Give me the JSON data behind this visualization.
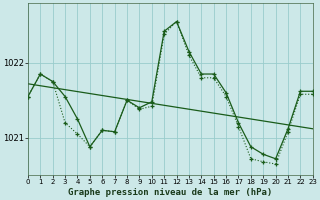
{
  "title": "Graphe pression niveau de la mer (hPa)",
  "bg_color": "#cce8e8",
  "grid_color": "#99cccc",
  "line_color": "#1a5c1a",
  "series1_y": [
    1021.55,
    1021.85,
    1021.75,
    1021.55,
    1021.25,
    1020.88,
    1021.1,
    1021.08,
    1021.5,
    1021.4,
    1021.48,
    1022.42,
    1022.55,
    1022.15,
    1021.85,
    1021.85,
    1021.6,
    1021.2,
    1020.88,
    1020.78,
    1020.72,
    1021.12,
    1021.62,
    1021.62
  ],
  "series2_y": [
    1021.55,
    1021.85,
    1021.75,
    1021.2,
    1021.05,
    1020.88,
    1021.1,
    1021.08,
    1021.5,
    1021.38,
    1021.42,
    1022.38,
    1022.55,
    1022.1,
    1021.8,
    1021.8,
    1021.55,
    1021.15,
    1020.72,
    1020.68,
    1020.65,
    1021.08,
    1021.58,
    1021.58
  ],
  "trend_x": [
    0,
    23
  ],
  "trend_y": [
    1021.72,
    1021.12
  ],
  "xlim": [
    0,
    23
  ],
  "ylim": [
    1020.5,
    1022.8
  ],
  "yticks": [
    1021.0,
    1022.0
  ],
  "xticks": [
    0,
    1,
    2,
    3,
    4,
    5,
    6,
    7,
    8,
    9,
    10,
    11,
    12,
    13,
    14,
    15,
    16,
    17,
    18,
    19,
    20,
    21,
    22,
    23
  ],
  "tick_fontsize": 5,
  "xlabel_fontsize": 6.5
}
